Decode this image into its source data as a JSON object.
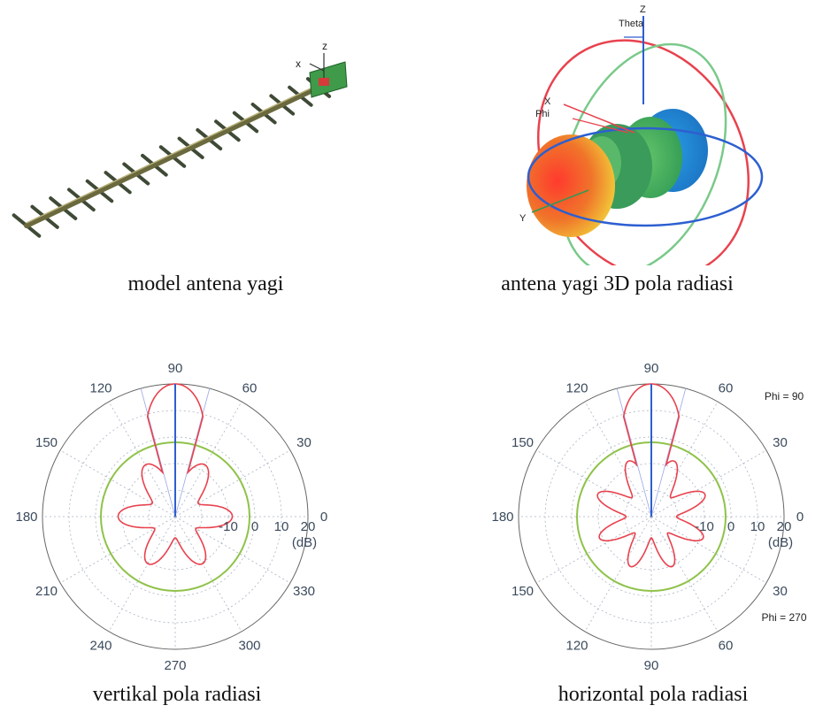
{
  "captions": {
    "model": "model antena yagi",
    "pattern3d": "antena yagi 3D pola radiasi",
    "vertical": "vertikal pola radiasi",
    "horizontal": "horizontal pola radiasi"
  },
  "model_axes": {
    "z": "z",
    "x": "x"
  },
  "axes3d": {
    "z": "Z",
    "theta": "Theta",
    "x": "X",
    "phi": "Phi",
    "y": "Y"
  },
  "chart_data": [
    {
      "type": "polar",
      "angle_ticks": [
        "0",
        "30",
        "60",
        "90",
        "120",
        "150",
        "180",
        "210",
        "240",
        "270",
        "300",
        "330"
      ],
      "radial_ticks": [
        "-10",
        "0",
        "10",
        "20"
      ],
      "radial_unit": "(dB)",
      "series": [
        {
          "values": "red multi-lobe radiation pattern, main lobe toward 90"
        },
        {
          "values": "green circular reference"
        }
      ]
    },
    {
      "type": "polar",
      "angle_ticks": [
        "0",
        "30",
        "60",
        "90",
        "120",
        "150",
        "180",
        "150",
        "120",
        "90",
        "60",
        "30"
      ],
      "radial_ticks": [
        "-10",
        "0",
        "10",
        "20"
      ],
      "radial_unit": "(dB)",
      "annotations": [
        "Phi = 90",
        "Phi = 270"
      ],
      "series": [
        {
          "values": "red multi-lobe radiation pattern, main lobe toward 90"
        },
        {
          "values": "green circular reference"
        }
      ]
    }
  ],
  "colors": {
    "pattern": "#e8424e",
    "reference": "#8fc24a",
    "main_axis": "#2d5fd0",
    "grid": "#a9b4c2",
    "ticks": "#3b4a5c"
  }
}
